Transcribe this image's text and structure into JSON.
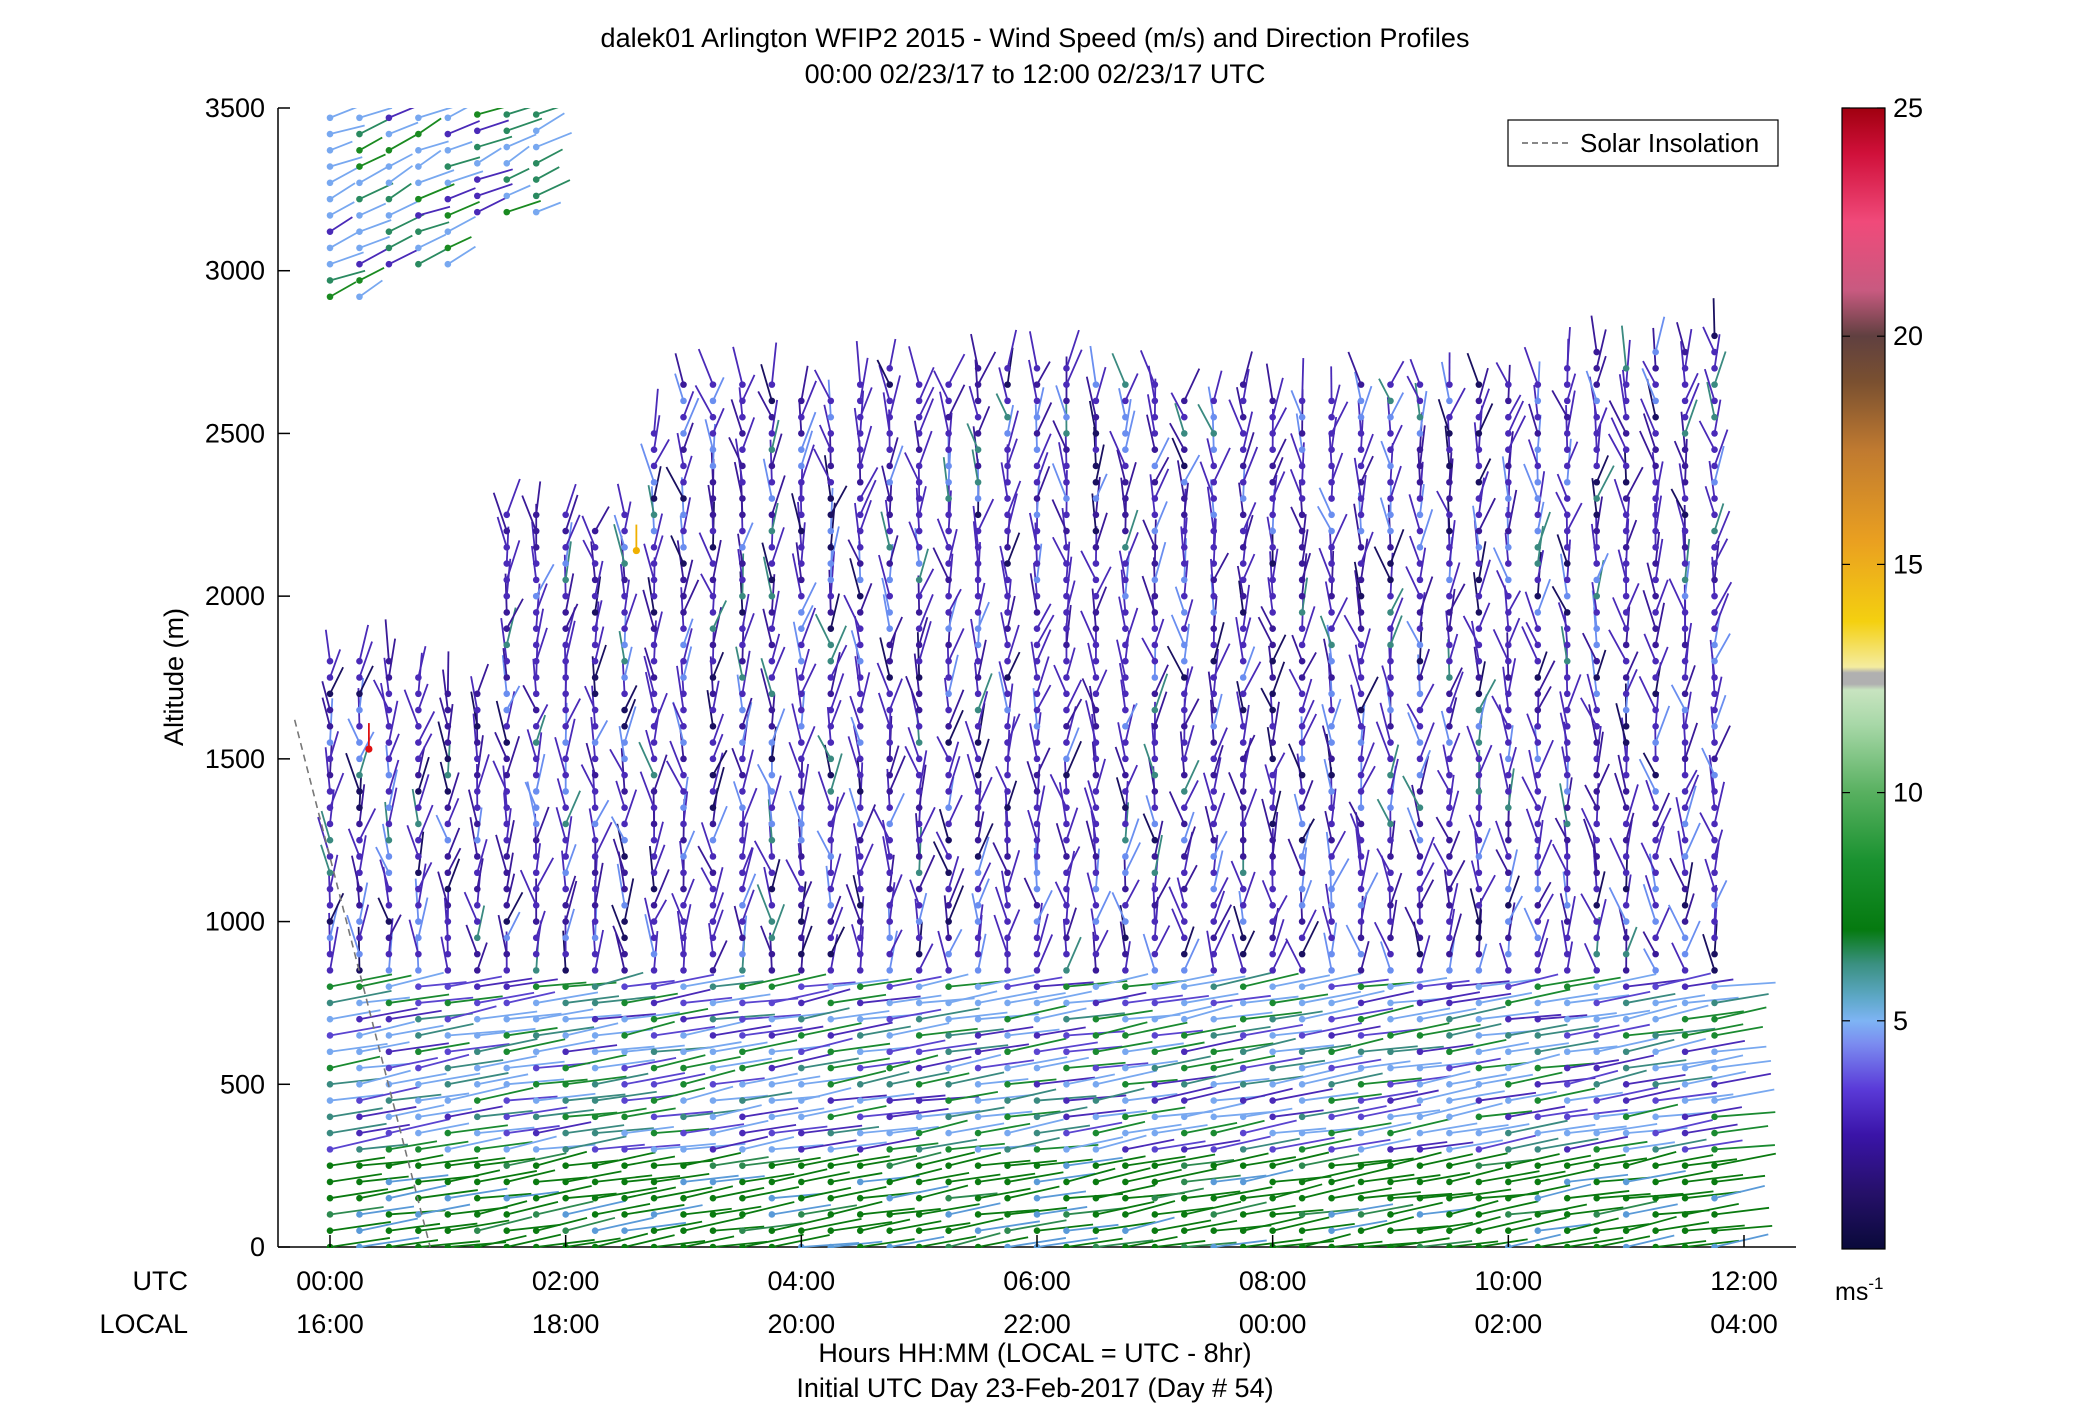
{
  "chart_data": {
    "type": "wind barb profile",
    "title_line1": "dalek01 Arlington WFIP2 2015 - Wind Speed (m/s) and Direction Profiles",
    "title_line2": "00:00 02/23/17 to 12:00 02/23/17  UTC",
    "ylabel": "Altitude (m)",
    "ylim": [
      0,
      3500
    ],
    "yticks": [
      "0",
      "500",
      "1000",
      "1500",
      "2000",
      "2500",
      "3000",
      "3500"
    ],
    "xlim": [
      0,
      12
    ],
    "x_row_labels": {
      "utc": "UTC",
      "local": "LOCAL"
    },
    "xticks_utc": [
      "00:00",
      "02:00",
      "04:00",
      "06:00",
      "08:00",
      "10:00",
      "12:00"
    ],
    "xticks_local": [
      "16:00",
      "18:00",
      "20:00",
      "22:00",
      "00:00",
      "02:00",
      "04:00"
    ],
    "xlabel_line1": "Hours HH:MM  (LOCAL = UTC - 8hr)",
    "xlabel_line2": "Initial UTC Day 23-Feb-2017 (Day # 54)",
    "legend": {
      "label": "Solar Insolation",
      "placement": "top-right",
      "style": "dashed gray"
    },
    "colorbar": {
      "ticks": [
        "5",
        "10",
        "15",
        "20",
        "25"
      ],
      "range": [
        0,
        25
      ],
      "unit_base": "ms",
      "unit_exp": "-1"
    },
    "solar_insolation_line": [
      {
        "x": -0.3,
        "y": 1620
      },
      {
        "x": 0.85,
        "y": 0
      }
    ],
    "profile_times_utc_hours": "every 0.25 h from 0.0 to 12.0",
    "altitude_bands": [
      {
        "from": 0,
        "to": 300,
        "speed_ms": "6-8",
        "color": "green"
      },
      {
        "from": 300,
        "to": 800,
        "speed_ms": "4-7",
        "color": "light blue / teal / green"
      },
      {
        "from": 800,
        "to": 2700,
        "speed_ms": "1-4",
        "color": "purple / dark blue"
      },
      {
        "from": 2900,
        "to": 3500,
        "speed_ms": "3-6",
        "color": "light blue / green",
        "time_range_utc": "00:00-01:45"
      }
    ],
    "profile_top_altitude_m": [
      [
        0.0,
        1820
      ],
      [
        0.25,
        1800
      ],
      [
        0.5,
        1800
      ],
      [
        0.75,
        1760
      ],
      [
        1.0,
        1740
      ],
      [
        1.25,
        1720
      ],
      [
        1.5,
        2280
      ],
      [
        1.75,
        2290
      ],
      [
        2.0,
        2270
      ],
      [
        2.25,
        2240
      ],
      [
        2.5,
        2260
      ],
      [
        2.75,
        2500
      ],
      [
        3.0,
        2660
      ],
      [
        3.25,
        2650
      ],
      [
        3.5,
        2660
      ],
      [
        3.75,
        2650
      ],
      [
        4.0,
        2620
      ],
      [
        4.25,
        2640
      ],
      [
        4.5,
        2680
      ],
      [
        4.75,
        2700
      ],
      [
        5.0,
        2690
      ],
      [
        5.25,
        2680
      ],
      [
        5.5,
        2720
      ],
      [
        5.75,
        2710
      ],
      [
        6.0,
        2720
      ],
      [
        6.25,
        2700
      ],
      [
        6.5,
        2690
      ],
      [
        6.75,
        2680
      ],
      [
        7.0,
        2660
      ],
      [
        7.25,
        2640
      ],
      [
        7.5,
        2640
      ],
      [
        7.75,
        2650
      ],
      [
        8.0,
        2640
      ],
      [
        8.25,
        2620
      ],
      [
        8.5,
        2640
      ],
      [
        8.75,
        2650
      ],
      [
        9.0,
        2650
      ],
      [
        9.25,
        2660
      ],
      [
        9.5,
        2650
      ],
      [
        9.75,
        2650
      ],
      [
        10.0,
        2670
      ],
      [
        10.25,
        2680
      ],
      [
        10.5,
        2720
      ],
      [
        10.75,
        2760
      ],
      [
        11.0,
        2720
      ],
      [
        11.25,
        2750
      ],
      [
        11.5,
        2780
      ],
      [
        11.75,
        2830
      ]
    ],
    "notable_points": [
      {
        "x": 0.33,
        "y": 1530,
        "speed_ms": 24,
        "color": "red"
      },
      {
        "x": 2.6,
        "y": 2140,
        "speed_ms": 15,
        "color": "orange"
      }
    ]
  }
}
